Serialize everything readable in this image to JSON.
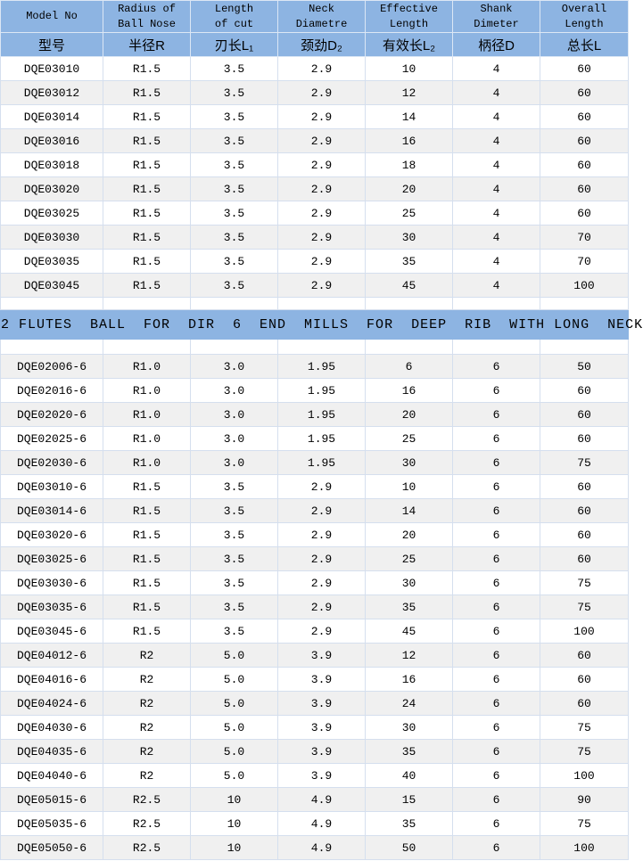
{
  "colors": {
    "header_bg": "#8db4e2",
    "banner_bg": "#8db4e2",
    "row_bg": "#ffffff",
    "row_alt_bg": "#f0f0f0",
    "grid_border": "#d5dfee",
    "header_border": "#dce7f5",
    "text": "#000000"
  },
  "table1": {
    "headers_en": [
      "Model No",
      "Radius of\nBall Nose",
      "Length\nof cut",
      "Neck\nDiametre",
      "Effective\nLength",
      "Shank\nDimeter",
      "Overall\nLength"
    ],
    "headers_cn": [
      "型号",
      "半径R",
      "刃长L₁",
      "颈劲D₂",
      "有效长L₂",
      "柄径D",
      "总长L"
    ],
    "rows": [
      [
        "DQE03010",
        "R1.5",
        "3.5",
        "2.9",
        "10",
        "4",
        "60"
      ],
      [
        "DQE03012",
        "R1.5",
        "3.5",
        "2.9",
        "12",
        "4",
        "60"
      ],
      [
        "DQE03014",
        "R1.5",
        "3.5",
        "2.9",
        "14",
        "4",
        "60"
      ],
      [
        "DQE03016",
        "R1.5",
        "3.5",
        "2.9",
        "16",
        "4",
        "60"
      ],
      [
        "DQE03018",
        "R1.5",
        "3.5",
        "2.9",
        "18",
        "4",
        "60"
      ],
      [
        "DQE03020",
        "R1.5",
        "3.5",
        "2.9",
        "20",
        "4",
        "60"
      ],
      [
        "DQE03025",
        "R1.5",
        "3.5",
        "2.9",
        "25",
        "4",
        "60"
      ],
      [
        "DQE03030",
        "R1.5",
        "3.5",
        "2.9",
        "30",
        "4",
        "70"
      ],
      [
        "DQE03035",
        "R1.5",
        "3.5",
        "2.9",
        "35",
        "4",
        "70"
      ],
      [
        "DQE03045",
        "R1.5",
        "3.5",
        "2.9",
        "45",
        "4",
        "100"
      ]
    ]
  },
  "banner": {
    "text": "2 FLUTES  BALL  FOR  DIR  6  END  MILLS  FOR  DEEP  RIB  WITH LONG  NECK"
  },
  "table2": {
    "rows": [
      [
        "DQE02006-6",
        "R1.0",
        "3.0",
        "1.95",
        "6",
        "6",
        "50"
      ],
      [
        "DQE02016-6",
        "R1.0",
        "3.0",
        "1.95",
        "16",
        "6",
        "60"
      ],
      [
        "DQE02020-6",
        "R1.0",
        "3.0",
        "1.95",
        "20",
        "6",
        "60"
      ],
      [
        "DQE02025-6",
        "R1.0",
        "3.0",
        "1.95",
        "25",
        "6",
        "60"
      ],
      [
        "DQE02030-6",
        "R1.0",
        "3.0",
        "1.95",
        "30",
        "6",
        "75"
      ],
      [
        "DQE03010-6",
        "R1.5",
        "3.5",
        "2.9",
        "10",
        "6",
        "60"
      ],
      [
        "DQE03014-6",
        "R1.5",
        "3.5",
        "2.9",
        "14",
        "6",
        "60"
      ],
      [
        "DQE03020-6",
        "R1.5",
        "3.5",
        "2.9",
        "20",
        "6",
        "60"
      ],
      [
        "DQE03025-6",
        "R1.5",
        "3.5",
        "2.9",
        "25",
        "6",
        "60"
      ],
      [
        "DQE03030-6",
        "R1.5",
        "3.5",
        "2.9",
        "30",
        "6",
        "75"
      ],
      [
        "DQE03035-6",
        "R1.5",
        "3.5",
        "2.9",
        "35",
        "6",
        "75"
      ],
      [
        "DQE03045-6",
        "R1.5",
        "3.5",
        "2.9",
        "45",
        "6",
        "100"
      ],
      [
        "DQE04012-6",
        "R2",
        "5.0",
        "3.9",
        "12",
        "6",
        "60"
      ],
      [
        "DQE04016-6",
        "R2",
        "5.0",
        "3.9",
        "16",
        "6",
        "60"
      ],
      [
        "DQE04024-6",
        "R2",
        "5.0",
        "3.9",
        "24",
        "6",
        "60"
      ],
      [
        "DQE04030-6",
        "R2",
        "5.0",
        "3.9",
        "30",
        "6",
        "75"
      ],
      [
        "DQE04035-6",
        "R2",
        "5.0",
        "3.9",
        "35",
        "6",
        "75"
      ],
      [
        "DQE04040-6",
        "R2",
        "5.0",
        "3.9",
        "40",
        "6",
        "100"
      ],
      [
        "DQE05015-6",
        "R2.5",
        "10",
        "4.9",
        "15",
        "6",
        "90"
      ],
      [
        "DQE05035-6",
        "R2.5",
        "10",
        "4.9",
        "35",
        "6",
        "75"
      ],
      [
        "DQE05050-6",
        "R2.5",
        "10",
        "4.9",
        "50",
        "6",
        "100"
      ]
    ]
  }
}
